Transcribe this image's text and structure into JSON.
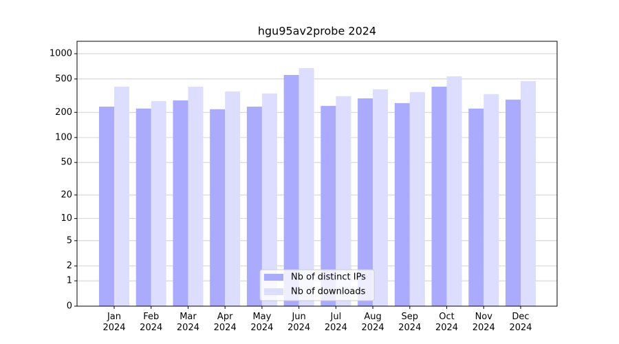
{
  "chart_data": {
    "type": "bar",
    "title": "hgu95av2probe 2024",
    "categories": [
      "Jan\n2024",
      "Feb\n2024",
      "Mar\n2024",
      "Apr\n2024",
      "May\n2024",
      "Jun\n2024",
      "Jul\n2024",
      "Aug\n2024",
      "Sep\n2024",
      "Oct\n2024",
      "Nov\n2024",
      "Dec\n2024"
    ],
    "series": [
      {
        "name": "Nb of distinct IPs",
        "color": "#aaaaff",
        "values": [
          234,
          222,
          278,
          218,
          234,
          558,
          239,
          294,
          258,
          405,
          222,
          284
        ]
      },
      {
        "name": "Nb of downloads",
        "color": "#ddddff",
        "values": [
          405,
          273,
          405,
          355,
          336,
          675,
          312,
          376,
          349,
          538,
          330,
          472
        ]
      }
    ],
    "yscale": "log1p",
    "ylim": [
      0,
      1405
    ],
    "yticks": [
      0,
      1,
      2,
      5,
      10,
      20,
      50,
      100,
      200,
      500,
      1000
    ],
    "grid": true,
    "legend": "lower center"
  }
}
